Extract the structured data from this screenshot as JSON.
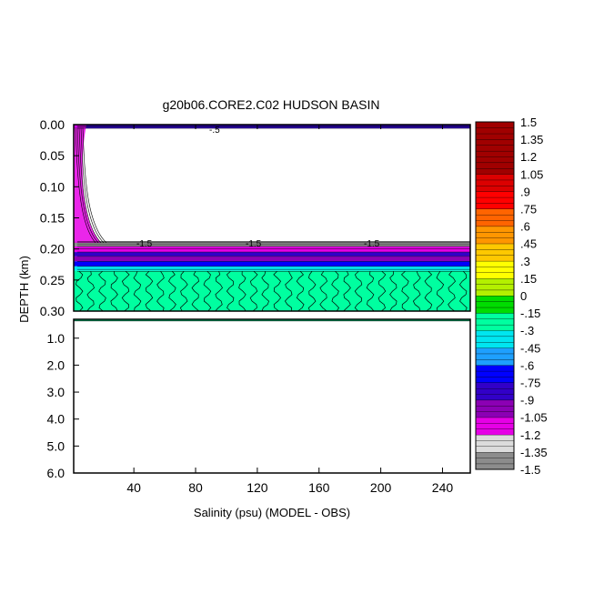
{
  "chart_data": {
    "type": "heatmap",
    "title": "g20b06.CORE2.C02 HUDSON BASIN",
    "xlabel": "Salinity (psu) (MODEL - OBS)",
    "ylabel": "DEPTH (km)",
    "x_ticks": [
      "40",
      "80",
      "120",
      "160",
      "200",
      "240"
    ],
    "x_tick_values": [
      40,
      80,
      120,
      160,
      200,
      240
    ],
    "xlim": [
      1,
      258
    ],
    "upper_panel": {
      "ylim": [
        0,
        0.3
      ],
      "y_ticks": [
        "0.00",
        "0.05",
        "0.10",
        "0.15",
        "0.20",
        "0.25",
        "0.30"
      ],
      "y_tick_values": [
        0,
        0.05,
        0.1,
        0.15,
        0.2,
        0.25,
        0.3
      ]
    },
    "lower_panel": {
      "ylim": [
        0.3,
        6.0
      ],
      "y_ticks": [
        "1.0",
        "2.0",
        "3.0",
        "4.0",
        "5.0",
        "6.0"
      ],
      "y_tick_values": [
        1,
        2,
        3,
        4,
        5,
        6
      ]
    },
    "colorbar": {
      "min": -1.5,
      "max": 1.5,
      "step": 0.05,
      "tick_labels": [
        "1.5",
        "1.35",
        "1.2",
        "1.05",
        ".9",
        ".75",
        ".6",
        ".45",
        ".3",
        ".15",
        "0",
        "-.15",
        "-.3",
        "-.45",
        "-.6",
        "-.75",
        "-.9",
        "-1.05",
        "-1.2",
        "-1.35",
        "-1.5"
      ],
      "colors": [
        "#8c8c8c",
        "#dcdcdc",
        "#e600e6",
        "#8c00b4",
        "#3200c8",
        "#0000ff",
        "#1ea0ff",
        "#00e6f0",
        "#00ffa0",
        "#00dc00",
        "#b4f000",
        "#ffff00",
        "#ffc800",
        "#ff9600",
        "#ff6400",
        "#ff0000",
        "#dc0000",
        "#a00000"
      ],
      "color_stops": [
        -1.5,
        -1.35,
        -1.2,
        -1.05,
        -0.9,
        -0.75,
        -0.6,
        -0.45,
        -0.3,
        -0.15,
        0,
        0.15,
        0.3,
        0.45,
        0.6,
        0.75,
        0.9,
        1.05
      ]
    },
    "field": {
      "depth_bands": [
        {
          "top": 0.0,
          "bottom": 0.006,
          "value": -0.8
        },
        {
          "top": 0.188,
          "bottom": 0.196,
          "value": -1.4
        },
        {
          "top": 0.196,
          "bottom": 0.205,
          "value": -1.1
        },
        {
          "top": 0.205,
          "bottom": 0.212,
          "value": -0.85
        },
        {
          "top": 0.212,
          "bottom": 0.22,
          "value": -0.95
        },
        {
          "top": 0.22,
          "bottom": 0.228,
          "value": -0.7
        },
        {
          "top": 0.228,
          "bottom": 0.235,
          "value": -0.45
        },
        {
          "top": 0.235,
          "bottom": 0.3,
          "value": -0.28
        }
      ],
      "lower_band": {
        "top": 0.3,
        "bottom": 0.36,
        "value": -0.3
      },
      "left_edge_plume": {
        "top": 0.0,
        "bottom": 0.19,
        "value": -1.2,
        "x_width": 6
      }
    },
    "contour_labels": [
      "-.5",
      "-1.5",
      "-1.5",
      "-1.5"
    ]
  }
}
